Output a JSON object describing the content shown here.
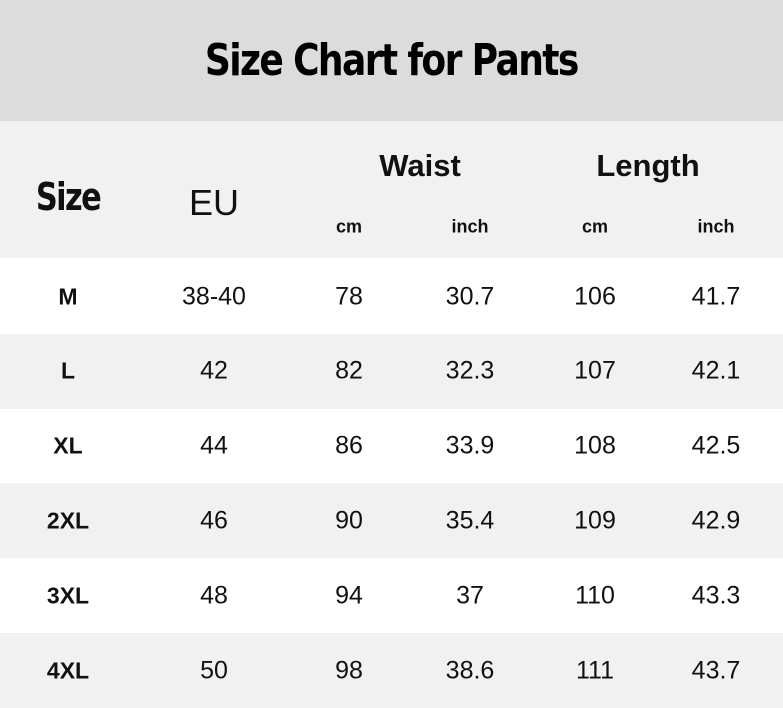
{
  "title": "Size Chart for Pants",
  "header": {
    "size": "Size",
    "eu": "EU",
    "waist": "Waist",
    "length": "Length",
    "waist_cm": "cm",
    "waist_inch": "inch",
    "length_cm": "cm",
    "length_inch": "inch"
  },
  "rows": [
    {
      "size": "M",
      "eu": "38-40",
      "waist_cm": "78",
      "waist_inch": "30.7",
      "length_cm": "106",
      "length_inch": "41.7"
    },
    {
      "size": "L",
      "eu": "42",
      "waist_cm": "82",
      "waist_inch": "32.3",
      "length_cm": "107",
      "length_inch": "42.1"
    },
    {
      "size": "XL",
      "eu": "44",
      "waist_cm": "86",
      "waist_inch": "33.9",
      "length_cm": "108",
      "length_inch": "42.5"
    },
    {
      "size": "2XL",
      "eu": "46",
      "waist_cm": "90",
      "waist_inch": "35.4",
      "length_cm": "109",
      "length_inch": "42.9"
    },
    {
      "size": "3XL",
      "eu": "48",
      "waist_cm": "94",
      "waist_inch": "37",
      "length_cm": "110",
      "length_inch": "43.3"
    },
    {
      "size": "4XL",
      "eu": "50",
      "waist_cm": "98",
      "waist_inch": "38.6",
      "length_cm": "111",
      "length_inch": "43.7"
    }
  ],
  "colors": {
    "title_bg": "#dcdcdc",
    "header_bg": "#f1f1f1",
    "alt_row_bg": "#f1f1f1",
    "row_bg": "#ffffff"
  }
}
